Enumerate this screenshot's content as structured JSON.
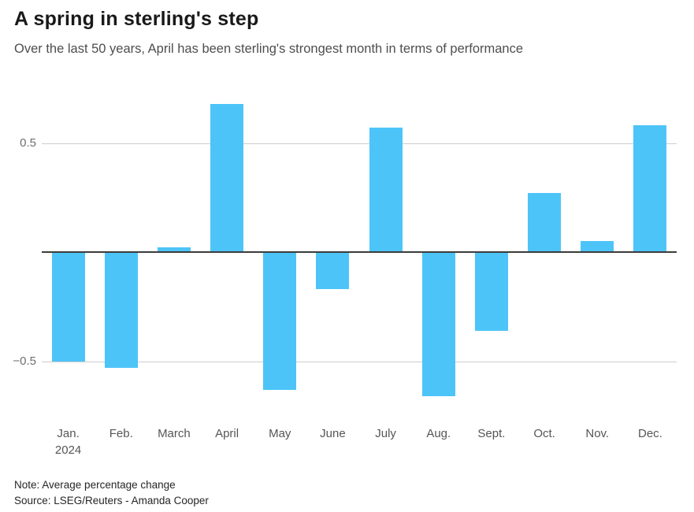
{
  "header": {
    "title": "A spring in sterling's step",
    "subtitle": "Over the last 50 years, April has been sterling's strongest month in terms of performance"
  },
  "chart_data": {
    "type": "bar",
    "title": "A spring in sterling's step",
    "subtitle": "Over the last 50 years, April has been sterling's strongest month in terms of performance",
    "categories": [
      "Jan.",
      "Feb.",
      "March",
      "April",
      "May",
      "June",
      "July",
      "Aug.",
      "Sept.",
      "Oct.",
      "Nov.",
      "Dec."
    ],
    "values": [
      -0.5,
      -0.53,
      0.02,
      0.68,
      -0.63,
      -0.17,
      0.57,
      -0.66,
      -0.36,
      0.27,
      0.05,
      0.58
    ],
    "x_axis_year_label": "2024",
    "xlabel": "",
    "ylabel": "",
    "y_ticks": [
      {
        "label": "0.5",
        "value": 0.5
      },
      {
        "label": "−0.5",
        "value": -0.5
      }
    ],
    "ylim": [
      -0.75,
      0.75
    ],
    "grid": "horizontal-only",
    "legend": "none",
    "bar_color": "#4DC4F8",
    "zero_line_color": "#3c3c3c",
    "gridline_color": "#cdcdcd",
    "units": "average percentage change"
  },
  "footer": {
    "note": "Note: Average percentage change",
    "source": "Source: LSEG/Reuters - Amanda Cooper"
  }
}
